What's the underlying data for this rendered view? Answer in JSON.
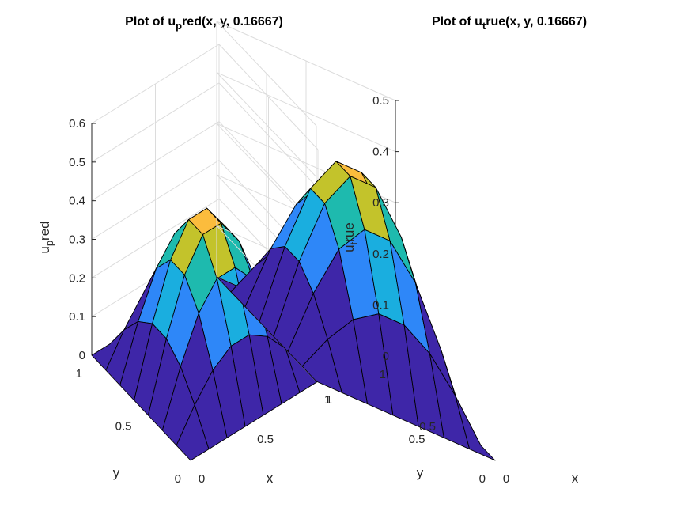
{
  "chart_data": [
    {
      "type": "surface",
      "title": {
        "prefix": "Plot of u",
        "sub": "p",
        "suffix": "red(x, y, 0.16667)"
      },
      "zlabel": {
        "prefix": "u",
        "sub": "p",
        "suffix": "red"
      },
      "xlabel": "x",
      "ylabel": "y",
      "x": [
        0,
        0.1429,
        0.2857,
        0.4286,
        0.5714,
        0.7143,
        0.8571,
        1
      ],
      "y": [
        0,
        0.1429,
        0.2857,
        0.4286,
        0.5714,
        0.7143,
        0.8571,
        1
      ],
      "peak": 0.4,
      "zlim": [
        0,
        0.6
      ],
      "zticks": [
        "0",
        "0.1",
        "0.2",
        "0.3",
        "0.4",
        "0.5",
        "0.6"
      ],
      "xticks": [
        "0",
        "0.5",
        "1"
      ],
      "yticks": [
        "0",
        "0.5",
        "1"
      ],
      "grid": true,
      "colormap": "parula"
    },
    {
      "type": "surface",
      "title": {
        "prefix": "Plot of u",
        "sub": "t",
        "suffix": "rue(x, y, 0.16667)"
      },
      "zlabel": {
        "prefix": "u",
        "sub": "t",
        "suffix": "rue"
      },
      "xlabel": "x",
      "ylabel": "y",
      "x": [
        0,
        0.1429,
        0.2857,
        0.4286,
        0.5714,
        0.7143,
        0.8571,
        1
      ],
      "y": [
        0,
        0.1429,
        0.2857,
        0.4286,
        0.5714,
        0.7143,
        0.8571,
        1
      ],
      "peak": 0.4,
      "zlim": [
        0,
        0.5
      ],
      "zticks": [
        "0",
        "0.1",
        "0.2",
        "0.3",
        "0.4",
        "0.5"
      ],
      "xticks": [
        "0",
        "0.5",
        "1"
      ],
      "yticks": [
        "0",
        "0.5",
        "1"
      ],
      "grid": true,
      "colormap": "parula"
    }
  ],
  "colors": {
    "level1": "#3e26a8",
    "level2": "#2e87f8",
    "level3": "#1aaedf",
    "level4": "#1ebaae",
    "level5": "#c3c32b",
    "level6": "#fbbc3d"
  }
}
